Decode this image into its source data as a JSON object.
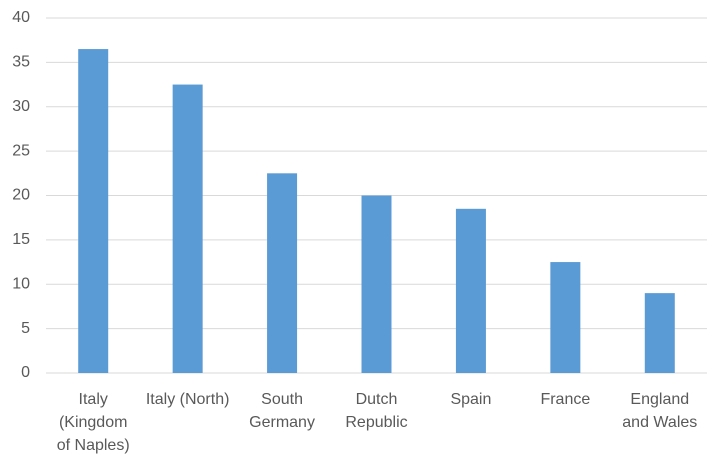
{
  "chart_data": {
    "type": "bar",
    "categories": [
      "Italy (Kingdom of Naples)",
      "Italy (North)",
      "South Germany",
      "Dutch Republic",
      "Spain",
      "France",
      "England and Wales"
    ],
    "values": [
      36.5,
      32.5,
      22.5,
      20,
      18.5,
      12.5,
      9
    ],
    "color": "#5b9bd5",
    "ylim": [
      0,
      40
    ],
    "yticks": [
      0,
      5,
      10,
      15,
      20,
      25,
      30,
      35,
      40
    ],
    "grid": true
  }
}
